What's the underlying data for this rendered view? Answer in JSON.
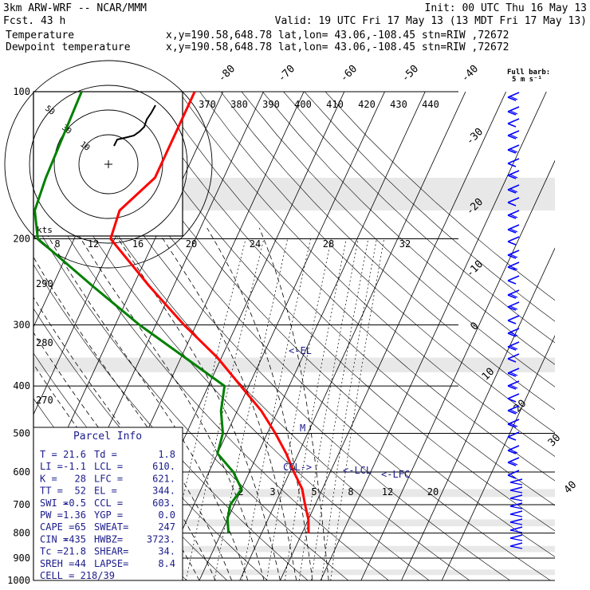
{
  "header": {
    "model": "3km ARW-WRF -- NCAR/MMM",
    "init": "Init: 00 UTC Thu 16 May 13",
    "fcst": "Fcst.    43 h",
    "valid": "Valid: 19 UTC Fri 17 May 13 (13 MDT Fri 17 May 13)",
    "temp_label": "Temperature",
    "temp_loc": "x,y=190.58,648.78   lat,lon= 43.06,-108.45  stn=RIW ,72672",
    "dew_label": "Dewpoint temperature",
    "dew_loc": "x,y=190.58,648.78   lat,lon= 43.06,-108.45  stn=RIW ,72672",
    "full_barb": "Full barb:",
    "full_barb_units": "5 m s⁻¹"
  },
  "colors": {
    "temperature": "#ff0000",
    "dewpoint": "#008000",
    "annotation": "#1c1c8c",
    "barb": "#0000ff"
  },
  "chart_data": {
    "type": "line",
    "title": "Skew-T log-P sounding",
    "y_axis": {
      "scale": "log",
      "ylim": [
        1000,
        100
      ],
      "ticks": [
        100,
        200,
        300,
        400,
        500,
        600,
        700,
        800,
        900,
        1000
      ]
    },
    "isotherms": [
      "-80",
      "-70",
      "-60",
      "-50",
      "-40",
      "-30",
      "-20",
      "-10",
      "0",
      "10",
      "20",
      "30",
      "40"
    ],
    "theta_e_labels": [
      "370",
      "380",
      "390",
      "400",
      "410",
      "420",
      "430",
      "440"
    ],
    "mixing_ratio_top": [
      "8",
      "12",
      "16",
      "20",
      "24",
      "28",
      "32"
    ],
    "mixing_ratio_low": [
      "2",
      "3",
      "5",
      "8",
      "12",
      "20"
    ],
    "adiabat_labels": [
      "290",
      "280",
      "270"
    ],
    "hodograph": {
      "unit_label": "kts",
      "ring_labels": [
        "10",
        "30",
        "50"
      ]
    },
    "series": [
      {
        "name": "Temperature",
        "color": "#ff0000",
        "points": [
          [
            100,
            -57
          ],
          [
            150,
            -57
          ],
          [
            175,
            -62
          ],
          [
            200,
            -61
          ],
          [
            250,
            -46
          ],
          [
            300,
            -33
          ],
          [
            350,
            -21
          ],
          [
            400,
            -12
          ],
          [
            450,
            -4
          ],
          [
            500,
            2
          ],
          [
            550,
            7
          ],
          [
            600,
            11
          ],
          [
            650,
            15
          ],
          [
            700,
            17.5
          ],
          [
            750,
            20
          ],
          [
            800,
            21.6
          ]
        ]
      },
      {
        "name": "Dewpoint temperature",
        "color": "#008000",
        "points": [
          [
            100,
            -85
          ],
          [
            150,
            -84
          ],
          [
            175,
            -83
          ],
          [
            200,
            -79
          ],
          [
            250,
            -60
          ],
          [
            300,
            -44
          ],
          [
            350,
            -29
          ],
          [
            400,
            -16
          ],
          [
            450,
            -14
          ],
          [
            500,
            -11
          ],
          [
            550,
            -10
          ],
          [
            600,
            -4
          ],
          [
            650,
            0
          ],
          [
            700,
            -1
          ],
          [
            750,
            0
          ],
          [
            800,
            1.8
          ]
        ]
      }
    ],
    "annotations": [
      "<-EL",
      "M",
      "CCL->",
      "<-LCL",
      "<-LFC"
    ],
    "parcel_info": {
      "title": "Parcel Info",
      "rows": [
        [
          "T  =",
          "21.6",
          "Td =",
          "1.8"
        ],
        [
          "LI =",
          "-1.1",
          "LCL =",
          "610."
        ],
        [
          "K  =",
          "28",
          "LFC =",
          "621."
        ],
        [
          "TT =",
          "52",
          "EL  =",
          "344."
        ],
        [
          "SWI =",
          "-0.5",
          "CCL =",
          "603."
        ],
        [
          "PW =",
          "1.36",
          "YGP =",
          "0.0"
        ],
        [
          "CAPE =",
          "65",
          "SWEAT=",
          "247"
        ],
        [
          "CIN =",
          "-435",
          "HWBZ=",
          "3723."
        ],
        [
          "Tc =",
          "21.8",
          "SHEAR=",
          "34."
        ],
        [
          "SREH =",
          "44",
          "LAPSE=",
          "8.4"
        ]
      ],
      "cell": "CELL = 218/39"
    }
  }
}
